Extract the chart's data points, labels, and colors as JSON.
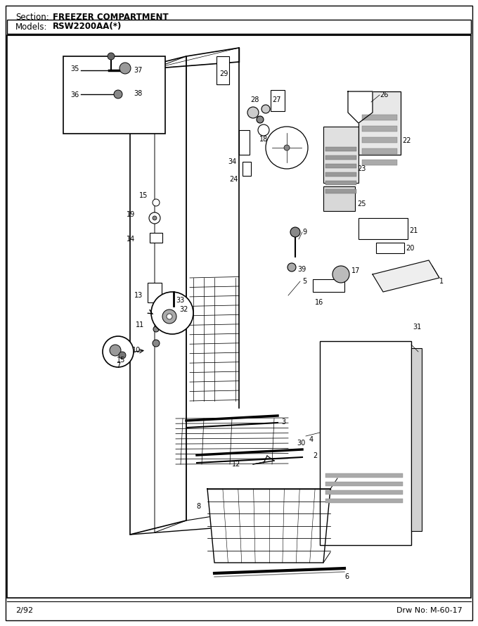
{
  "title_section_label": "Section:",
  "title_section_bold": "FREEZER COMPARTMENT",
  "title_models_label": "Models:",
  "title_models_bold": "RSW2200AA(*)",
  "footer_left": "2/92",
  "footer_right": "Drw No: M-60-17",
  "bg_color": "#ffffff",
  "fig_width": 6.8,
  "fig_height": 8.9,
  "dpi": 100
}
